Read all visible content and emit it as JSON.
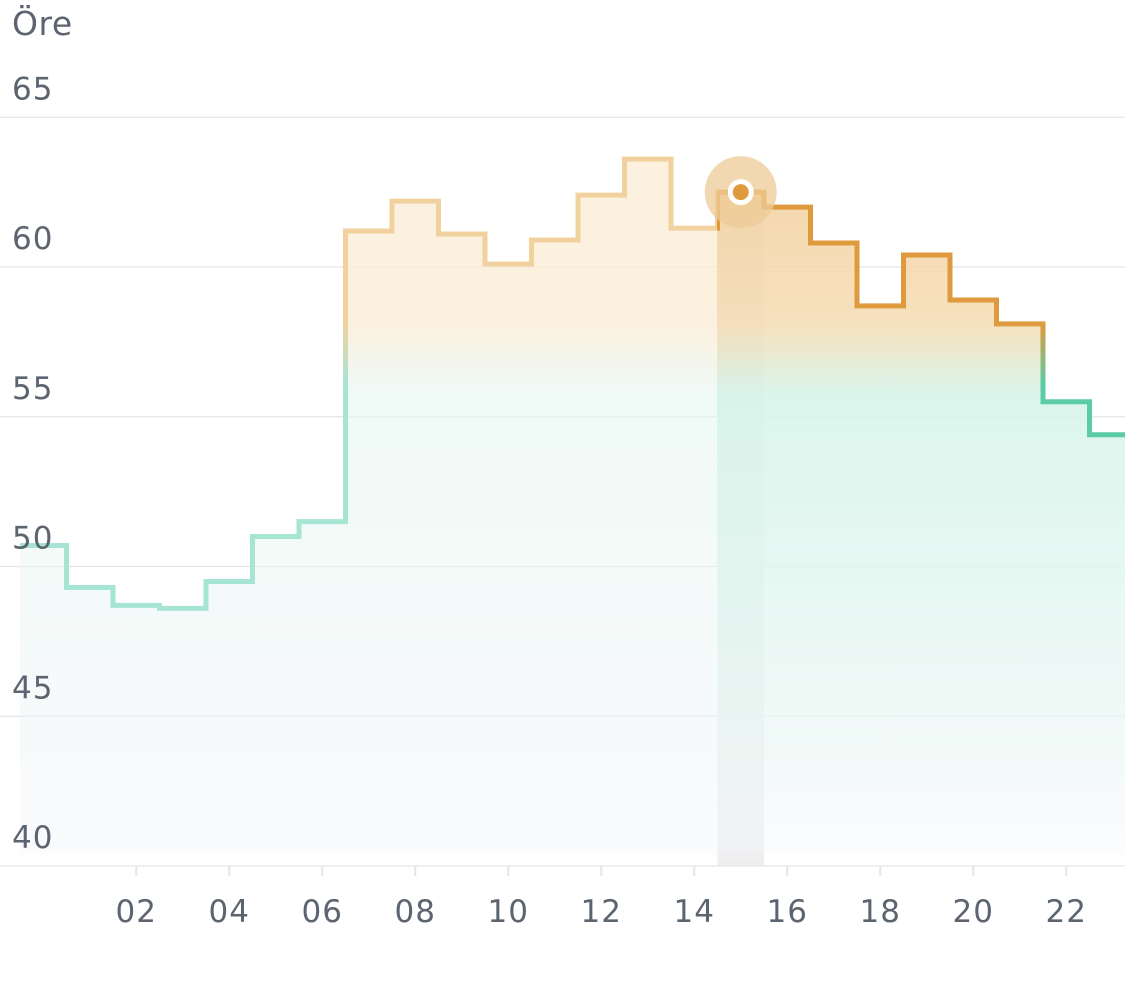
{
  "chart_data": {
    "type": "line",
    "step": true,
    "unit": "Öre",
    "y_ticks": [
      "65",
      "60",
      "55",
      "50",
      "45",
      "40"
    ],
    "x_ticks": [
      "02",
      "04",
      "06",
      "08",
      "10",
      "12",
      "14",
      "16",
      "18",
      "20",
      "22"
    ],
    "ylim": [
      40,
      65
    ],
    "grid": true,
    "hours": [
      0,
      1,
      2,
      3,
      4,
      5,
      6,
      7,
      8,
      9,
      10,
      11,
      12,
      13,
      14,
      15,
      16,
      17,
      18,
      19,
      20,
      21,
      22,
      23
    ],
    "values": [
      50.7,
      49.3,
      48.7,
      48.6,
      49.5,
      51.0,
      51.5,
      61.2,
      62.2,
      61.1,
      60.1,
      60.9,
      62.4,
      63.6,
      61.3,
      62.5,
      62.0,
      60.8,
      58.7,
      60.4,
      58.9,
      58.1,
      55.5,
      54.4
    ],
    "selected_hour": 15,
    "selected_value": 62.5,
    "colors": {
      "cheap": "#5ccba8",
      "cheap_faded": "#a6e5d3",
      "expensive": "#de9a3c",
      "expensive_faded": "#f1d29f",
      "grid": "#e4e5e8",
      "axis_text": "#5c6470",
      "selection_band": "#e9e9ea",
      "marker_halo": "#edcb97"
    }
  }
}
